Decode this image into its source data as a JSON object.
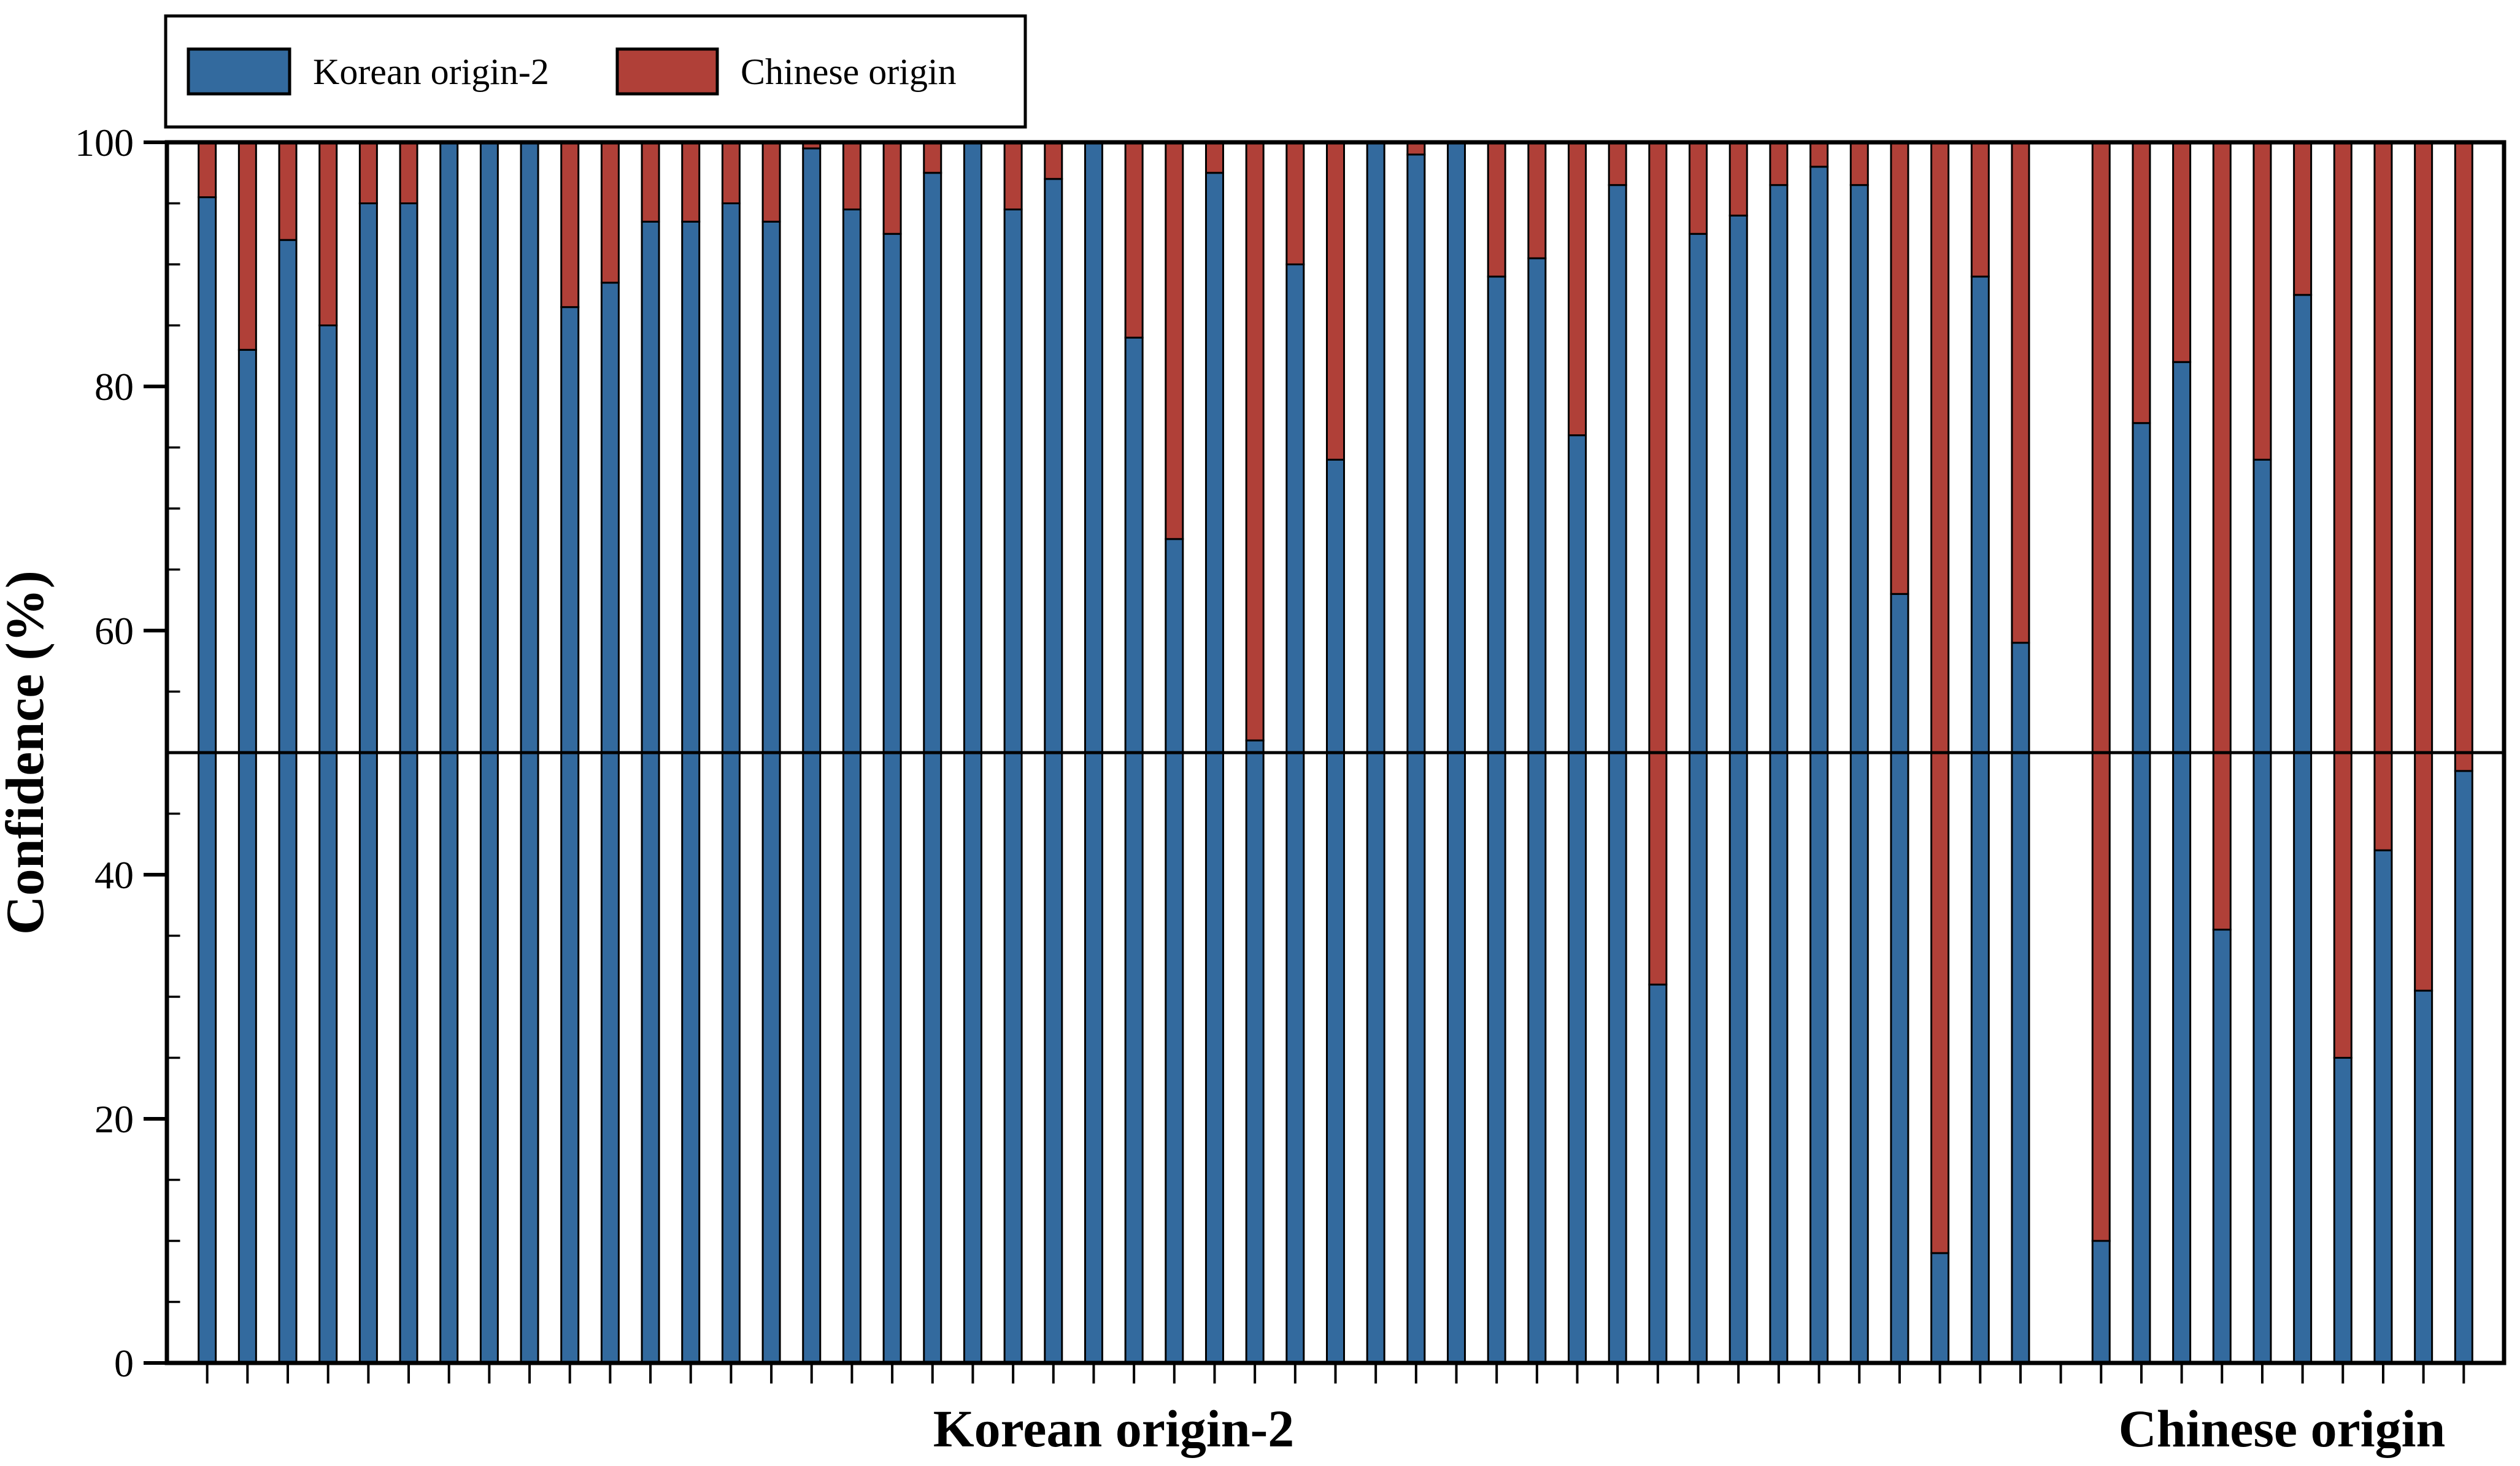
{
  "chart_data": {
    "type": "bar",
    "stacked": true,
    "stack_total": 100,
    "title": "",
    "ylabel": "Confidence (%)",
    "ylim": [
      0,
      100
    ],
    "yticks": [
      0,
      20,
      40,
      60,
      80,
      100
    ],
    "ytick_labels": [
      "0",
      "20",
      "40",
      "60",
      "80",
      "100"
    ],
    "minor_tick_step": 5,
    "reference_line_y": 50,
    "grid": false,
    "legend_position": "top-left",
    "series": [
      {
        "name": "Korean origin-2",
        "color": "#336A9E"
      },
      {
        "name": "Chinese origin",
        "color": "#B04038"
      }
    ],
    "outline_color": "#000000",
    "total_slots": 57,
    "groups": [
      {
        "label": "Korean origin-2",
        "start_slot": 0,
        "korean_origin2_pct": [
          95.5,
          83,
          92,
          85,
          95,
          95,
          100,
          100,
          100,
          86.5,
          88.5,
          93.5,
          93.5,
          95,
          93.5,
          99.5,
          94.5,
          92.5,
          97.5,
          100,
          94.5,
          97,
          100,
          84,
          67.5,
          97.5,
          51,
          90,
          74,
          100,
          99,
          100,
          89,
          90.5,
          76,
          96.5,
          31,
          92.5,
          94,
          96.5,
          98,
          96.5,
          63,
          9,
          89,
          59
        ]
      },
      {
        "label": "Chinese origin",
        "start_slot": 47,
        "korean_origin2_pct": [
          10,
          77,
          82,
          35.5,
          74,
          87.5,
          25,
          42,
          30.5,
          48.5
        ]
      }
    ]
  }
}
